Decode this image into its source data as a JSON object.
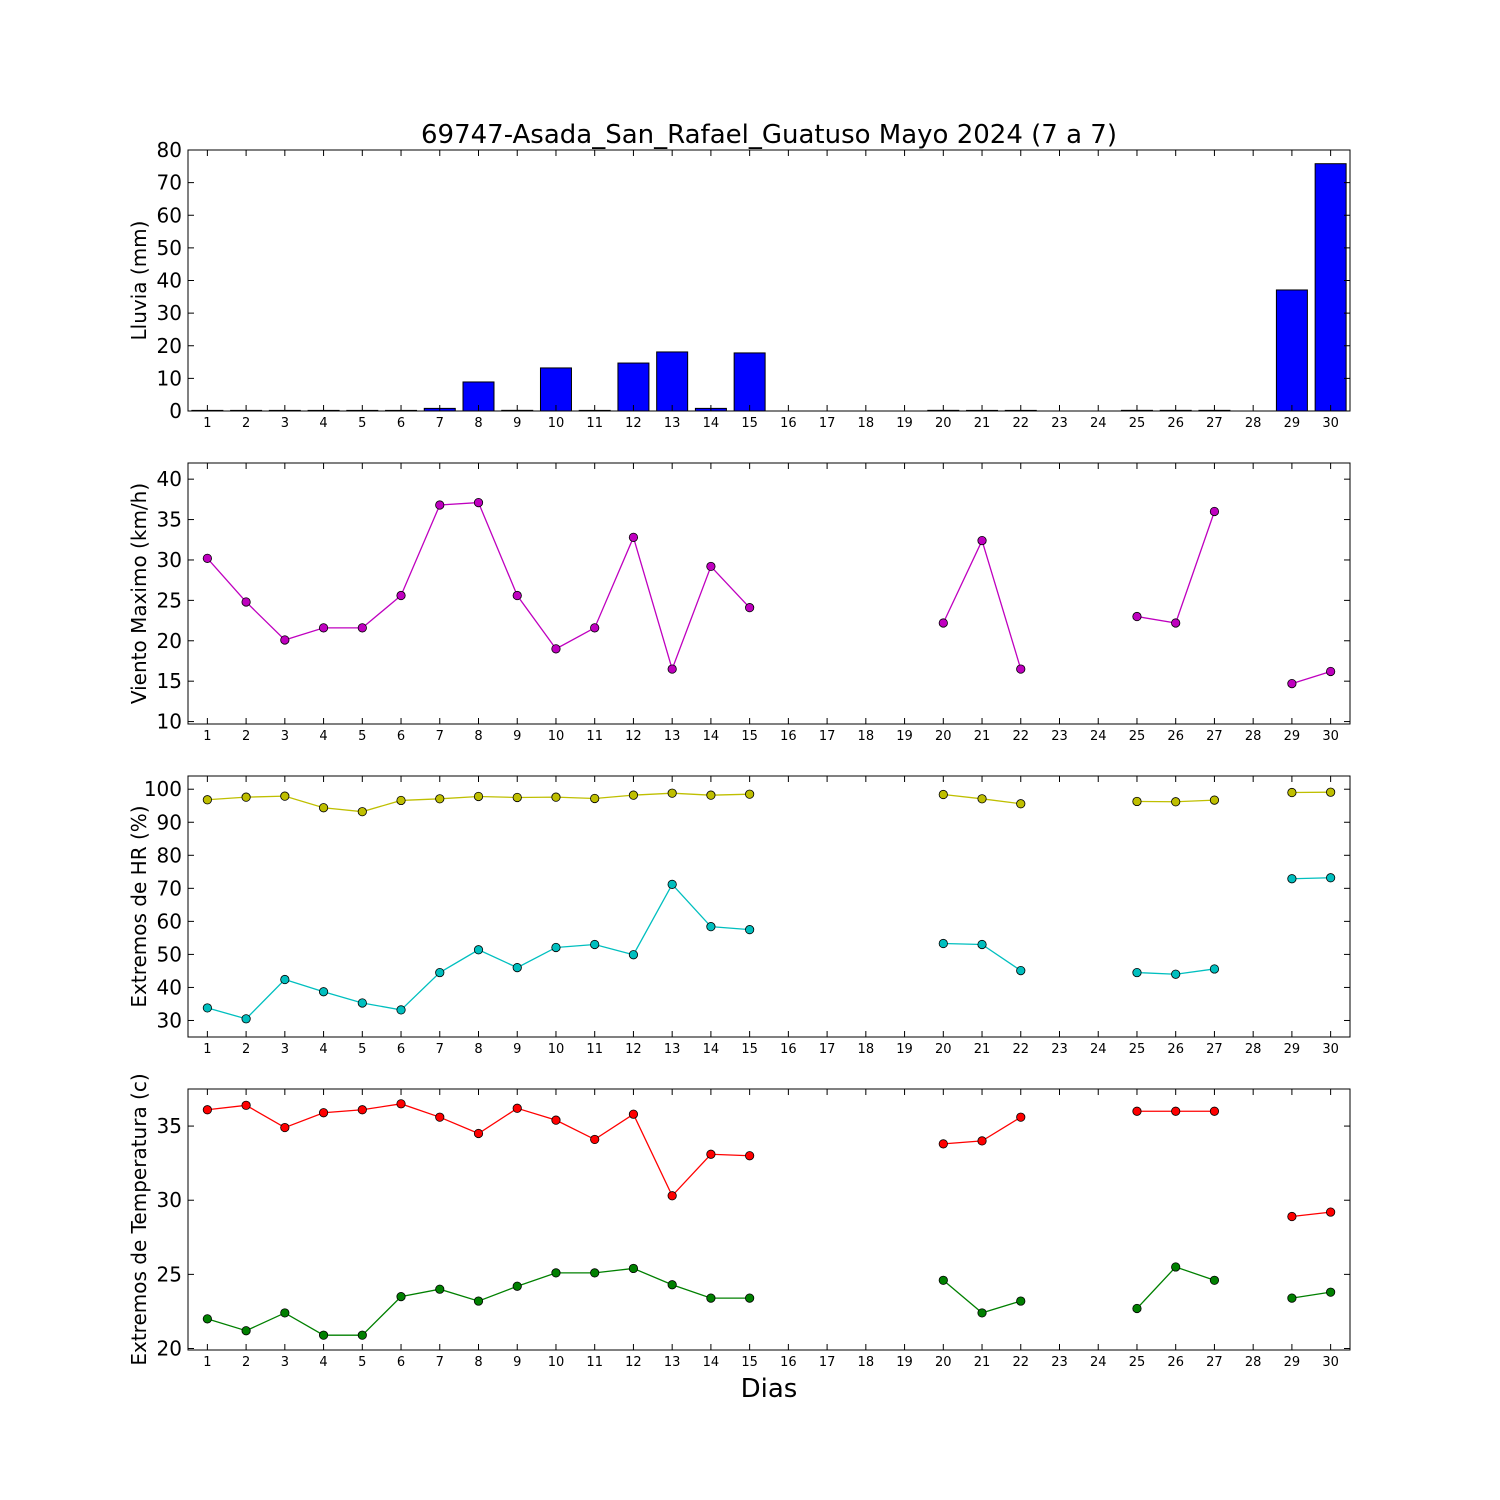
{
  "title": "69747-Asada_San_Rafael_Guatuso Mayo 2024  (7 a 7)",
  "xlabel": "Dias",
  "chart_data": [
    {
      "type": "bar",
      "ylabel": "Lluvia (mm)",
      "ylim": [
        0,
        80
      ],
      "yticks": [
        0,
        10,
        20,
        30,
        40,
        50,
        60,
        70,
        80
      ],
      "xticks": [
        1,
        2,
        3,
        4,
        5,
        6,
        7,
        8,
        9,
        10,
        11,
        12,
        13,
        14,
        15,
        16,
        17,
        18,
        19,
        20,
        21,
        22,
        23,
        24,
        25,
        26,
        27,
        28,
        29,
        30
      ],
      "xlim": [
        0.5,
        30.5
      ],
      "color": "#0000ff",
      "series": [
        {
          "values": [
            0,
            0,
            0,
            0,
            0,
            0,
            0.8,
            8.9,
            0.2,
            13.2,
            0,
            14.7,
            18.1,
            0.8,
            17.8,
            null,
            null,
            null,
            null,
            0.2,
            0,
            0,
            null,
            null,
            0.2,
            0.2,
            0.2,
            null,
            37.1,
            75.8
          ]
        }
      ]
    },
    {
      "type": "line",
      "ylabel": "Viento Maximo (km/h)",
      "ylim": [
        9.7,
        42
      ],
      "yticks": [
        10,
        15,
        20,
        25,
        30,
        35,
        40
      ],
      "xticks": [
        1,
        2,
        3,
        4,
        5,
        6,
        7,
        8,
        9,
        10,
        11,
        12,
        13,
        14,
        15,
        16,
        17,
        18,
        19,
        20,
        21,
        22,
        23,
        24,
        25,
        26,
        27,
        28,
        29,
        30
      ],
      "xlim": [
        0.5,
        30.5
      ],
      "series": [
        {
          "color": "#bf00bf",
          "values": [
            30.2,
            24.8,
            20.1,
            21.6,
            21.6,
            25.6,
            36.8,
            37.1,
            25.6,
            19.0,
            21.6,
            32.8,
            16.5,
            29.2,
            24.1,
            null,
            null,
            null,
            null,
            22.2,
            32.4,
            16.5,
            null,
            null,
            23.0,
            22.2,
            36.0,
            null,
            14.7,
            16.2
          ]
        }
      ]
    },
    {
      "type": "line",
      "ylabel": "Extremos de HR (%)",
      "ylim": [
        25,
        104
      ],
      "yticks": [
        30,
        40,
        50,
        60,
        70,
        80,
        90,
        100
      ],
      "xticks": [
        1,
        2,
        3,
        4,
        5,
        6,
        7,
        8,
        9,
        10,
        11,
        12,
        13,
        14,
        15,
        16,
        17,
        18,
        19,
        20,
        21,
        22,
        23,
        24,
        25,
        26,
        27,
        28,
        29,
        30
      ],
      "xlim": [
        0.5,
        30.5
      ],
      "series": [
        {
          "color": "#bfbf00",
          "values": [
            96.8,
            97.6,
            97.9,
            94.4,
            93.2,
            96.6,
            97.1,
            97.8,
            97.5,
            97.6,
            97.2,
            98.2,
            98.8,
            98.2,
            98.5,
            null,
            null,
            null,
            null,
            98.4,
            97.1,
            95.6,
            null,
            null,
            96.3,
            96.2,
            96.7,
            null,
            99.0,
            99.1
          ]
        },
        {
          "color": "#00bfbf",
          "values": [
            33.8,
            30.5,
            42.4,
            38.7,
            35.3,
            33.2,
            44.5,
            51.4,
            46.0,
            52.1,
            53.0,
            49.9,
            71.2,
            58.4,
            57.5,
            null,
            null,
            null,
            null,
            53.3,
            53.0,
            45.1,
            null,
            null,
            44.5,
            44.0,
            45.6,
            null,
            72.9,
            73.2
          ]
        }
      ]
    },
    {
      "type": "line",
      "ylabel": "Extremos de Temperatura (c)",
      "ylim": [
        19.9,
        37.5
      ],
      "yticks": [
        20,
        25,
        30,
        35
      ],
      "xticks": [
        1,
        2,
        3,
        4,
        5,
        6,
        7,
        8,
        9,
        10,
        11,
        12,
        13,
        14,
        15,
        16,
        17,
        18,
        19,
        20,
        21,
        22,
        23,
        24,
        25,
        26,
        27,
        28,
        29,
        30
      ],
      "xlim": [
        0.5,
        30.5
      ],
      "series": [
        {
          "color": "#ff0000",
          "values": [
            36.1,
            36.4,
            34.9,
            35.9,
            36.1,
            36.5,
            35.6,
            34.5,
            36.2,
            35.4,
            34.1,
            35.8,
            30.3,
            33.1,
            33.0,
            null,
            null,
            null,
            null,
            33.8,
            34.0,
            35.6,
            null,
            null,
            36.0,
            36.0,
            36.0,
            null,
            28.9,
            29.2
          ]
        },
        {
          "color": "#008000",
          "values": [
            22.0,
            21.2,
            22.4,
            20.9,
            20.9,
            23.5,
            24.0,
            23.2,
            24.2,
            25.1,
            25.1,
            25.4,
            24.3,
            23.4,
            23.4,
            null,
            null,
            null,
            null,
            24.6,
            22.4,
            23.2,
            null,
            null,
            22.7,
            25.5,
            24.6,
            null,
            23.4,
            23.8
          ]
        }
      ]
    }
  ]
}
